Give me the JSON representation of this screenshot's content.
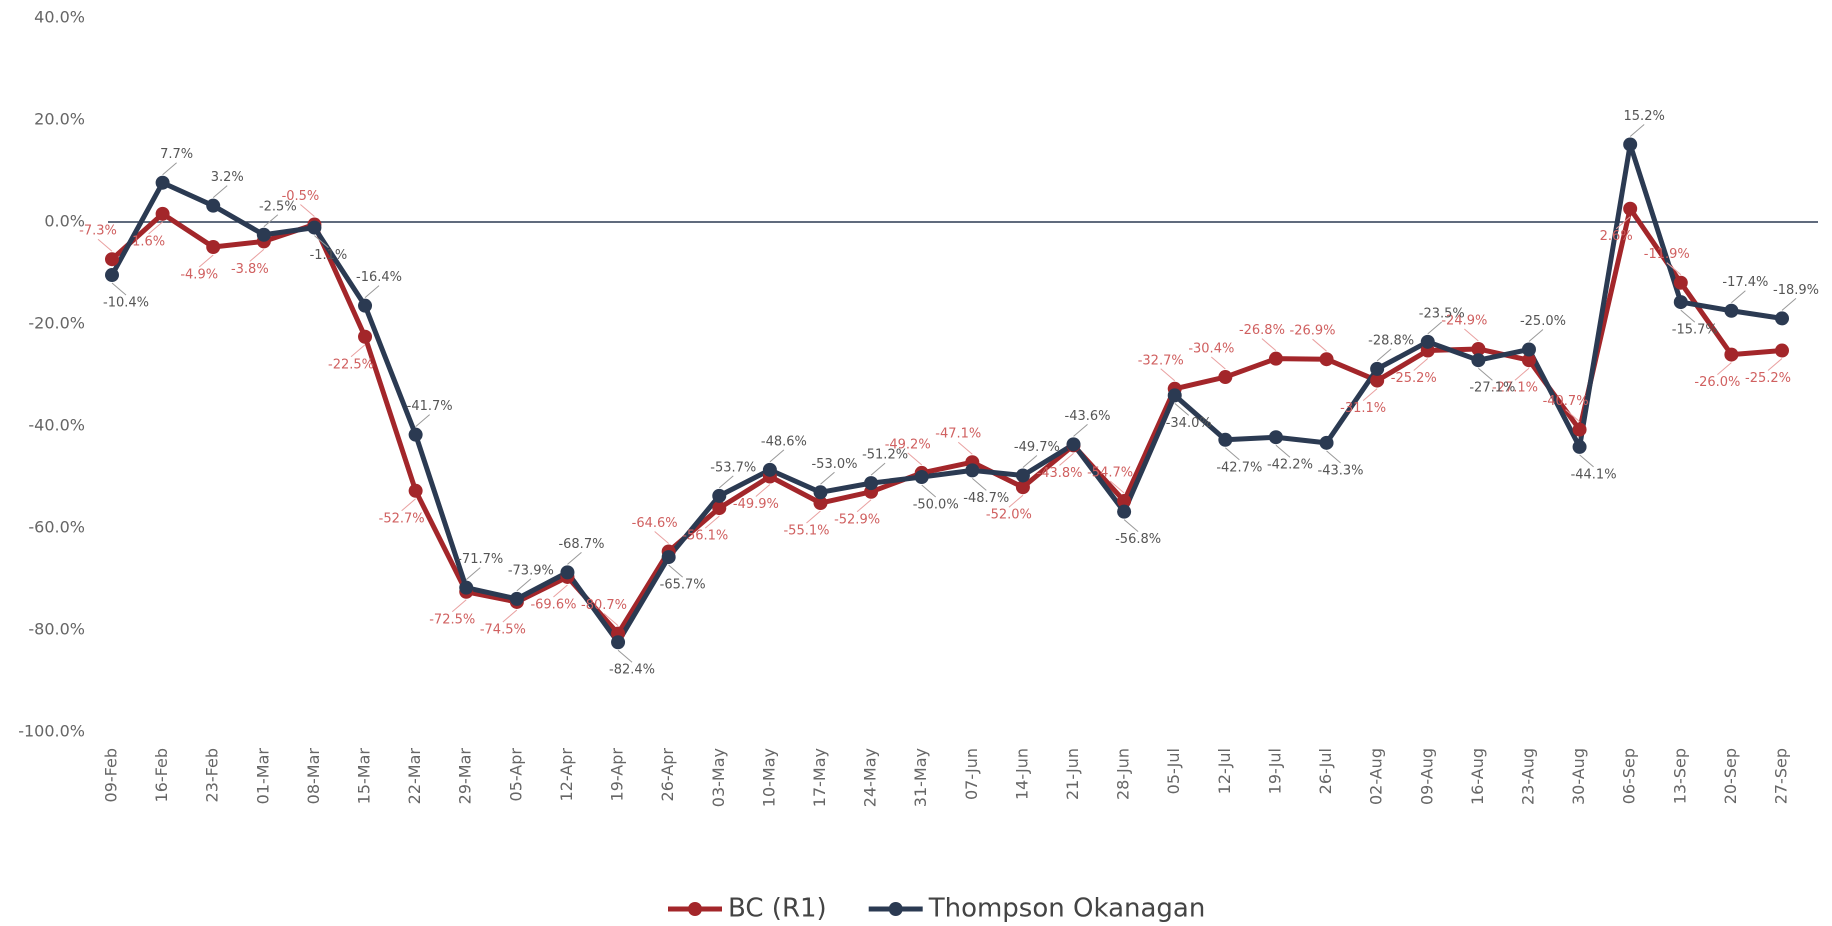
{
  "chart_data": {
    "type": "line",
    "categories": [
      "09-Feb",
      "16-Feb",
      "23-Feb",
      "01-Mar",
      "08-Mar",
      "15-Mar",
      "22-Mar",
      "29-Mar",
      "05-Apr",
      "12-Apr",
      "19-Apr",
      "26-Apr",
      "03-May",
      "10-May",
      "17-May",
      "24-May",
      "31-May",
      "07-Jun",
      "14-Jun",
      "21-Jun",
      "28-Jun",
      "05-Jul",
      "12-Jul",
      "19-Jul",
      "26-Jul",
      "02-Aug",
      "09-Aug",
      "16-Aug",
      "23-Aug",
      "30-Aug",
      "06-Sep",
      "13-Sep",
      "20-Sep",
      "27-Sep"
    ],
    "series": [
      {
        "name": "BC (R1)",
        "color": "#a3262a",
        "values": [
          -7.3,
          1.6,
          -4.9,
          -3.8,
          -0.5,
          -22.5,
          -52.7,
          -72.5,
          -74.5,
          -69.6,
          -80.7,
          -64.6,
          -56.1,
          -49.9,
          -55.1,
          -52.9,
          -49.2,
          -47.1,
          -52.0,
          -43.8,
          -54.7,
          -32.7,
          -30.4,
          -26.8,
          -26.9,
          -31.1,
          -25.2,
          -24.9,
          -27.1,
          -40.7,
          2.6,
          -11.9,
          -26.0,
          -25.2
        ],
        "value_labels": [
          "-7.3%",
          "1.6%",
          "-4.9%",
          "-3.8%",
          "-0.5%",
          "-22.5%",
          "-52.7%",
          "-72.5%",
          "-74.5%",
          "-69.6%",
          "-80.7%",
          "-64.6%",
          "-56.1%",
          "-49.9%",
          "-55.1%",
          "-52.9%",
          "-49.2%",
          "-47.1%",
          "-52.0%",
          "-43.8%",
          "-54.7%",
          "-32.7%",
          "-30.4%",
          "-26.8%",
          "-26.9%",
          "-31.1%",
          "-25.2%",
          "-24.9%",
          "-27.1%",
          "-40.7%",
          "2.6%",
          "-11.9%",
          "-26.0%",
          "-25.2%"
        ]
      },
      {
        "name": "Thompson Okanagan",
        "color": "#2b3a52",
        "values": [
          -10.4,
          7.7,
          3.2,
          -2.5,
          -1.1,
          -16.4,
          -41.7,
          -71.7,
          -73.9,
          -68.7,
          -82.4,
          -65.7,
          -53.7,
          -48.6,
          -53.0,
          -51.2,
          -50.0,
          -48.7,
          -49.7,
          -43.6,
          -56.8,
          -34.0,
          -42.7,
          -42.2,
          -43.3,
          -28.8,
          -23.5,
          -27.1,
          -25.0,
          -44.1,
          15.2,
          -15.7,
          -17.4,
          -18.9
        ],
        "value_labels": [
          "-10.4%",
          "7.7%",
          "3.2%",
          "-2.5%",
          "-1.1%",
          "-16.4%",
          "-41.7%",
          "-71.7%",
          "-73.9%",
          "-68.7%",
          "-82.4%",
          "-65.7%",
          "-53.7%",
          "-48.6%",
          "-53.0%",
          "-51.2%",
          "-50.0%",
          "-48.7%",
          "-49.7%",
          "-43.6%",
          "-56.8%",
          "-34.0%",
          "-42.7%",
          "-42.2%",
          "-43.3%",
          "-28.8%",
          "-23.5%",
          "-27.1%",
          "-25.0%",
          "-44.1%",
          "15.2%",
          "-15.7%",
          "-17.4%",
          "-18.9%"
        ]
      }
    ],
    "ylim": [
      -100,
      40
    ],
    "yticks": [
      {
        "value": -100,
        "label": "-100.0%"
      },
      {
        "value": -80,
        "label": "-80.0%"
      },
      {
        "value": -60,
        "label": "-60.0%"
      },
      {
        "value": -40,
        "label": "-40.0%"
      },
      {
        "value": -20,
        "label": "-20.0%"
      },
      {
        "value": 0,
        "label": "0.0%"
      },
      {
        "value": 20,
        "label": "20.0%"
      },
      {
        "value": 40,
        "label": "40.0%"
      }
    ],
    "grid": false,
    "legend": "bottom"
  }
}
